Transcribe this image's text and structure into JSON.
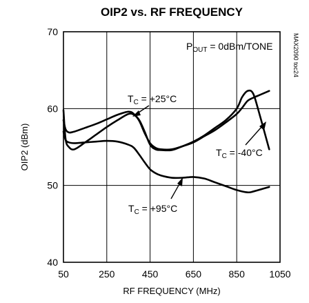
{
  "chart_data": {
    "type": "line",
    "title": "OIP2 vs. RF FREQUENCY",
    "xlabel": "RF FREQUENCY (MHz)",
    "ylabel": "OIP2 (dBm)",
    "xlim": [
      50,
      1050
    ],
    "ylim": [
      40,
      70
    ],
    "xticks": [
      "50",
      "250",
      "450",
      "650",
      "850",
      "1050"
    ],
    "yticks": [
      "40",
      "50",
      "60",
      "70"
    ],
    "grid": true,
    "side_code": "MAX2090 toc24",
    "condition": {
      "prefix": "P",
      "sub": "OUT",
      "suffix": " = 0dBm/TONE"
    },
    "series": [
      {
        "name": "TC = +25°C",
        "label": {
          "prefix": "T",
          "sub": "C",
          "suffix": " = +25°C"
        },
        "x": [
          50,
          60,
          75,
          100,
          150,
          200,
          250,
          300,
          350,
          375,
          400,
          425,
          450,
          475,
          500,
          550,
          600,
          650,
          700,
          750,
          800,
          850,
          875,
          900,
          925,
          950,
          1000
        ],
        "y": [
          58.5,
          57.3,
          56.9,
          57.0,
          57.5,
          58.0,
          58.6,
          59.2,
          59.6,
          59.3,
          58.4,
          56.8,
          55.5,
          54.9,
          54.7,
          54.7,
          55.1,
          55.6,
          56.4,
          57.2,
          58.2,
          59.3,
          60.1,
          61.0,
          61.4,
          61.7,
          62.3
        ]
      },
      {
        "name": "TC = -40°C",
        "label": {
          "prefix": "T",
          "sub": "C",
          "suffix": " = -40°C"
        },
        "x": [
          50,
          60,
          75,
          100,
          150,
          200,
          250,
          300,
          350,
          375,
          400,
          425,
          450,
          475,
          500,
          550,
          600,
          650,
          700,
          750,
          800,
          850,
          875,
          900,
          925,
          950,
          1000
        ],
        "y": [
          59.8,
          56.0,
          55.0,
          54.7,
          55.6,
          56.6,
          57.6,
          58.5,
          59.3,
          59.2,
          58.5,
          57.0,
          55.3,
          54.7,
          54.6,
          54.6,
          55.1,
          55.7,
          56.5,
          57.5,
          58.5,
          60.0,
          61.5,
          62.3,
          62.0,
          59.8,
          54.7
        ]
      },
      {
        "name": "TC = +95°C",
        "label": {
          "prefix": "T",
          "sub": "C",
          "suffix": " = +95°C"
        },
        "x": [
          50,
          60,
          75,
          100,
          150,
          200,
          250,
          300,
          350,
          375,
          400,
          425,
          450,
          475,
          500,
          550,
          600,
          650,
          700,
          750,
          800,
          850,
          900,
          925,
          950,
          1000
        ],
        "y": [
          57.0,
          55.9,
          55.6,
          55.5,
          55.6,
          55.7,
          55.8,
          55.7,
          55.3,
          54.9,
          54.0,
          53.0,
          52.1,
          51.6,
          51.3,
          51.0,
          51.0,
          51.1,
          50.9,
          50.4,
          49.9,
          49.4,
          49.1,
          49.2,
          49.4,
          49.8
        ]
      }
    ]
  }
}
